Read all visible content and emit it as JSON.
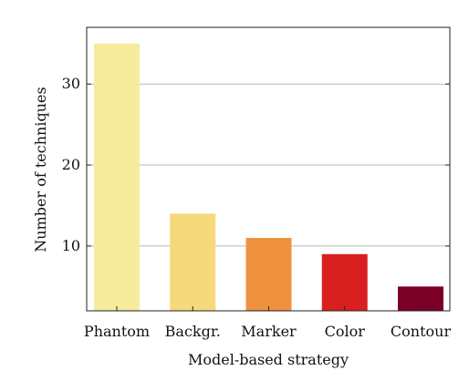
{
  "chart_data": {
    "type": "bar",
    "categories": [
      "Phantom",
      "Backgr.",
      "Marker",
      "Color",
      "Contour"
    ],
    "values": [
      35,
      14,
      11,
      9,
      5
    ],
    "colors": [
      "#f7ec9c",
      "#f6d97a",
      "#ef9240",
      "#d7201f",
      "#7a0025"
    ],
    "xlabel": "Model-based strategy",
    "ylabel": "Number of techniques",
    "ylim": [
      2,
      37
    ],
    "yticks": [
      10,
      20,
      30
    ],
    "grid": "horizontal",
    "legend": "none"
  }
}
